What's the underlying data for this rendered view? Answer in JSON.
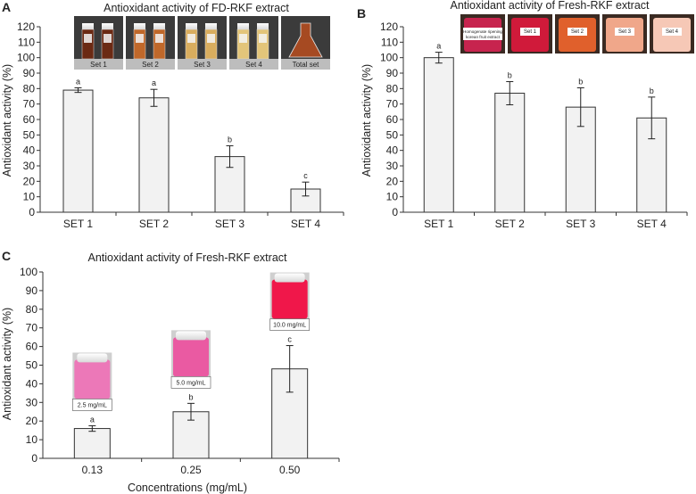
{
  "figure": {
    "panel_labels": [
      "A",
      "B",
      "C"
    ]
  },
  "chart_data": [
    {
      "id": "A",
      "type": "bar",
      "title": "Antioxidant activity of FD-RKF extract",
      "xlabel": "",
      "ylabel": "Antioxidant activity (%)",
      "ylim": [
        0,
        120
      ],
      "yticks": [
        0,
        10,
        20,
        30,
        40,
        50,
        60,
        70,
        80,
        90,
        100,
        110,
        120
      ],
      "categories": [
        "SET 1",
        "SET 2",
        "SET 3",
        "SET 4"
      ],
      "values": [
        79,
        74,
        36,
        15
      ],
      "errors": [
        1.5,
        5.5,
        7,
        4.5
      ],
      "significance": [
        "a",
        "a",
        "b",
        "c"
      ],
      "photos": [
        {
          "label": "Set 1",
          "fill": "#6b2a14"
        },
        {
          "label": "Set 2",
          "fill": "#c0682a"
        },
        {
          "label": "Set 3",
          "fill": "#d9ad5e"
        },
        {
          "label": "Set 4",
          "fill": "#e3c57a"
        },
        {
          "label": "Total set",
          "fill": "#a64a22"
        }
      ]
    },
    {
      "id": "B",
      "type": "bar",
      "title": "Antioxidant activity of Fresh-RKF extract",
      "xlabel": "",
      "ylabel": "Antioxidant activity (%)",
      "ylim": [
        0,
        120
      ],
      "yticks": [
        0,
        10,
        20,
        30,
        40,
        50,
        60,
        70,
        80,
        90,
        100,
        110,
        120
      ],
      "categories": [
        "SET 1",
        "SET 2",
        "SET 3",
        "SET 4"
      ],
      "values": [
        100,
        77,
        68,
        61
      ],
      "errors": [
        3.5,
        7.5,
        12.5,
        13.5
      ],
      "significance": [
        "a",
        "b",
        "b",
        "b"
      ],
      "photos": [
        {
          "label": "Homogenate ripening\nkorean fruit extract",
          "fill": "#c7244e"
        },
        {
          "label": "Set 1",
          "fill": "#d01a3a"
        },
        {
          "label": "Set 2",
          "fill": "#e0602c"
        },
        {
          "label": "Set 3",
          "fill": "#f0a78a"
        },
        {
          "label": "Set 4",
          "fill": "#f6c8b6"
        }
      ]
    },
    {
      "id": "C",
      "type": "bar",
      "title": "Antioxidant activity of Fresh-RKF extract",
      "xlabel": "Concentrations (mg/mL)",
      "ylabel": "Antioxidant activity (%)",
      "ylim": [
        0,
        100
      ],
      "yticks": [
        0,
        10,
        20,
        30,
        40,
        50,
        60,
        70,
        80,
        90,
        100
      ],
      "categories": [
        "0.13",
        "0.25",
        "0.50"
      ],
      "values": [
        16,
        25,
        48
      ],
      "errors": [
        1.5,
        4.5,
        12.5
      ],
      "significance": [
        "a",
        "b",
        "c"
      ],
      "photos": [
        {
          "label": "2.5 mg/mL",
          "fill": "#ec78b8"
        },
        {
          "label": "5.0 mg/mL",
          "fill": "#ea5aa2"
        },
        {
          "label": "10.0 mg/mL",
          "fill": "#f0174a"
        }
      ]
    }
  ]
}
